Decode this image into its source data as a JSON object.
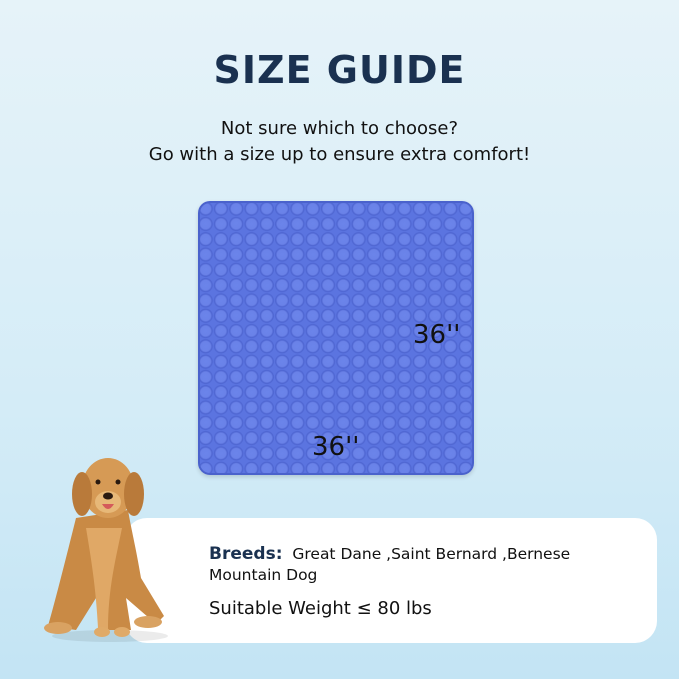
{
  "title": "SIZE GUIDE",
  "subtitle_line1": "Not sure which to choose?",
  "subtitle_line2": "Go with a size up to ensure extra comfort!",
  "mat": {
    "color": "#5b74e0",
    "height_label": "36''",
    "width_label": "36''"
  },
  "card": {
    "breeds_label": "Breeds:",
    "breeds_value": "Great Dane ,Saint Bernard ,Bernese Mountain Dog",
    "weight": "Suitable Weight ≤ 80 lbs"
  },
  "colors": {
    "title": "#1a3150",
    "background": "#d4ecf7"
  }
}
